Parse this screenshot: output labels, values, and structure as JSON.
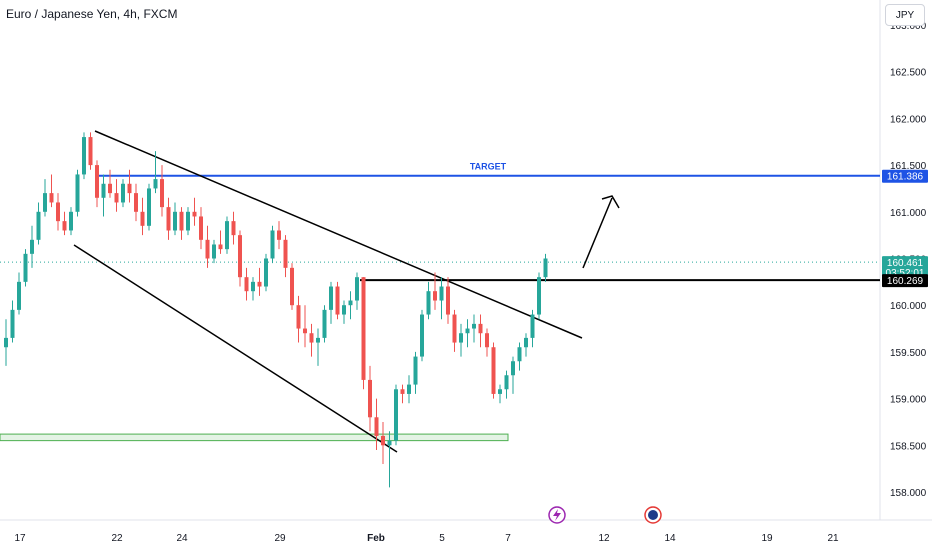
{
  "header": {
    "title": "Euro / Japanese Yen, 4h, FXCM",
    "currency": "JPY"
  },
  "chart_data": {
    "type": "candlestick",
    "title": "Euro / Japanese Yen, 4h, FXCM",
    "price_ticks": [
      "163.000",
      "162.500",
      "162.000",
      "161.500",
      "161.000",
      "160.500",
      "160.000",
      "159.500",
      "159.000",
      "158.500",
      "158.000"
    ],
    "price_tick_values": [
      163.0,
      162.5,
      162.0,
      161.5,
      161.0,
      160.5,
      160.0,
      159.5,
      159.0,
      158.5,
      158.0
    ],
    "date_ticks": [
      "17",
      "22",
      "24",
      "29",
      "Feb",
      "5",
      "7",
      "12",
      "14",
      "19",
      "21"
    ],
    "ylim": [
      157.6,
      163.05
    ],
    "candles": [
      [
        159.55,
        159.85,
        159.35,
        159.65
      ],
      [
        159.65,
        160.05,
        159.6,
        159.95
      ],
      [
        159.95,
        160.35,
        159.9,
        160.25
      ],
      [
        160.25,
        160.6,
        160.2,
        160.55
      ],
      [
        160.55,
        160.85,
        160.4,
        160.7
      ],
      [
        160.7,
        161.1,
        160.65,
        161.0
      ],
      [
        161.0,
        161.35,
        160.95,
        161.2
      ],
      [
        161.2,
        161.4,
        161.05,
        161.1
      ],
      [
        161.1,
        161.2,
        160.8,
        160.9
      ],
      [
        160.9,
        161.0,
        160.75,
        160.8
      ],
      [
        160.8,
        161.05,
        160.75,
        161.0
      ],
      [
        161.0,
        161.45,
        160.95,
        161.4
      ],
      [
        161.4,
        161.85,
        161.35,
        161.8
      ],
      [
        161.8,
        161.85,
        161.45,
        161.5
      ],
      [
        161.5,
        161.55,
        161.05,
        161.15
      ],
      [
        161.15,
        161.4,
        160.95,
        161.3
      ],
      [
        161.3,
        161.45,
        161.15,
        161.2
      ],
      [
        161.2,
        161.35,
        161.0,
        161.1
      ],
      [
        161.1,
        161.35,
        161.05,
        161.3
      ],
      [
        161.3,
        161.45,
        161.1,
        161.2
      ],
      [
        161.2,
        161.3,
        160.9,
        161.0
      ],
      [
        161.0,
        161.15,
        160.75,
        160.85
      ],
      [
        160.85,
        161.3,
        160.8,
        161.25
      ],
      [
        161.25,
        161.65,
        161.2,
        161.35
      ],
      [
        161.35,
        161.5,
        160.95,
        161.05
      ],
      [
        161.05,
        161.15,
        160.7,
        160.8
      ],
      [
        160.8,
        161.1,
        160.75,
        161.0
      ],
      [
        161.0,
        161.05,
        160.7,
        160.8
      ],
      [
        160.8,
        161.05,
        160.75,
        161.0
      ],
      [
        161.0,
        161.15,
        160.85,
        160.95
      ],
      [
        160.95,
        161.05,
        160.6,
        160.7
      ],
      [
        160.7,
        160.85,
        160.4,
        160.5
      ],
      [
        160.5,
        160.7,
        160.45,
        160.65
      ],
      [
        160.65,
        160.8,
        160.55,
        160.6
      ],
      [
        160.6,
        160.95,
        160.55,
        160.9
      ],
      [
        160.9,
        161.0,
        160.65,
        160.75
      ],
      [
        160.75,
        160.8,
        160.2,
        160.3
      ],
      [
        160.3,
        160.4,
        160.05,
        160.15
      ],
      [
        160.15,
        160.3,
        160.05,
        160.25
      ],
      [
        160.25,
        160.4,
        160.1,
        160.2
      ],
      [
        160.2,
        160.55,
        160.15,
        160.5
      ],
      [
        160.5,
        160.85,
        160.45,
        160.8
      ],
      [
        160.8,
        160.9,
        160.6,
        160.7
      ],
      [
        160.7,
        160.75,
        160.3,
        160.4
      ],
      [
        160.4,
        160.45,
        159.95,
        160.0
      ],
      [
        160.0,
        160.1,
        159.6,
        159.75
      ],
      [
        159.75,
        160.0,
        159.55,
        159.7
      ],
      [
        159.7,
        159.8,
        159.45,
        159.6
      ],
      [
        159.6,
        159.75,
        159.35,
        159.65
      ],
      [
        159.65,
        160.0,
        159.6,
        159.95
      ],
      [
        159.95,
        160.25,
        159.8,
        160.2
      ],
      [
        160.2,
        160.25,
        159.85,
        159.9
      ],
      [
        159.9,
        160.05,
        159.8,
        160.0
      ],
      [
        160.0,
        160.15,
        159.85,
        160.05
      ],
      [
        160.05,
        160.35,
        159.95,
        160.3
      ],
      [
        160.3,
        160.3,
        159.1,
        159.2
      ],
      [
        159.2,
        159.35,
        158.65,
        158.8
      ],
      [
        158.8,
        159.0,
        158.45,
        158.6
      ],
      [
        158.6,
        158.75,
        158.3,
        158.5
      ],
      [
        158.5,
        158.65,
        158.05,
        158.55
      ],
      [
        158.55,
        159.15,
        158.5,
        159.1
      ],
      [
        159.1,
        159.15,
        158.95,
        159.05
      ],
      [
        159.05,
        159.25,
        158.95,
        159.15
      ],
      [
        159.15,
        159.5,
        159.05,
        159.45
      ],
      [
        159.45,
        159.95,
        159.4,
        159.9
      ],
      [
        159.9,
        160.25,
        159.85,
        160.15
      ],
      [
        160.15,
        160.35,
        159.95,
        160.05
      ],
      [
        160.05,
        160.3,
        159.85,
        160.2
      ],
      [
        160.2,
        160.3,
        159.8,
        159.9
      ],
      [
        159.9,
        159.95,
        159.5,
        159.6
      ],
      [
        159.6,
        159.8,
        159.45,
        159.7
      ],
      [
        159.7,
        159.85,
        159.55,
        159.75
      ],
      [
        159.75,
        159.9,
        159.6,
        159.8
      ],
      [
        159.8,
        159.9,
        159.55,
        159.7
      ],
      [
        159.7,
        159.75,
        159.45,
        159.55
      ],
      [
        159.55,
        159.6,
        159.0,
        159.05
      ],
      [
        159.05,
        159.15,
        158.95,
        159.1
      ],
      [
        159.1,
        159.3,
        159.0,
        159.25
      ],
      [
        159.25,
        159.45,
        159.05,
        159.4
      ],
      [
        159.4,
        159.6,
        159.3,
        159.55
      ],
      [
        159.55,
        159.7,
        159.45,
        159.65
      ],
      [
        159.65,
        159.95,
        159.55,
        159.9
      ],
      [
        159.9,
        160.35,
        159.85,
        160.3
      ],
      [
        160.3,
        160.55,
        160.25,
        160.5
      ]
    ],
    "target_price": 161.386,
    "target_label": "TARGET",
    "current_price": 160.461,
    "countdown": "03:52:01",
    "neckline_price": 160.269,
    "colors": {
      "bull": "#26a69a",
      "bear": "#ef5350",
      "target_line": "#1e53e5",
      "price_badge": "#26a69a",
      "neckline_badge": "#000000",
      "support_zone": "#4caf50"
    },
    "support_zone": [
      158.55,
      158.62
    ],
    "bottom_icons": [
      "lightning-icon",
      "calendar-flag-icon"
    ]
  }
}
